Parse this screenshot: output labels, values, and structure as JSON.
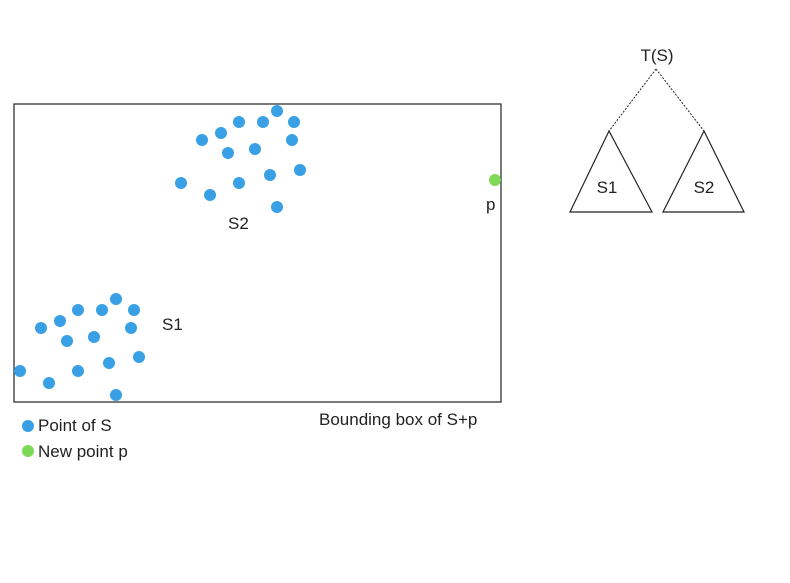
{
  "labels": {
    "cluster_s1": "S1",
    "cluster_s2": "S2",
    "new_point": "p",
    "bounding_box": "Bounding box of S+p",
    "tree_root": "T(S)",
    "tree_left": "S1",
    "tree_right": "S2"
  },
  "legend": {
    "point_of_s": "Point of S",
    "new_point_p": "New point p"
  },
  "colors": {
    "point_of_s": "#3aa0e6",
    "new_point_p": "#7ed957",
    "line": "#222222"
  }
}
